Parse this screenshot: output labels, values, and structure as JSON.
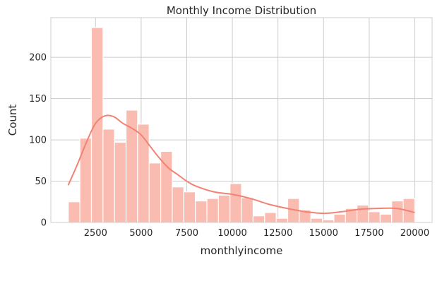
{
  "chart_data": {
    "type": "bar",
    "title": "Monthly Income Distribution",
    "xlabel": "monthlyincome",
    "ylabel": "Count",
    "xlim": [
      50,
      20950
    ],
    "ylim": [
      0,
      248
    ],
    "xticks": [
      2500,
      5000,
      7500,
      10000,
      12500,
      15000,
      17500,
      20000
    ],
    "yticks": [
      0,
      50,
      100,
      150,
      200
    ],
    "grid": true,
    "bins": {
      "start": 1009,
      "width": 633,
      "counts": [
        25,
        102,
        236,
        113,
        97,
        136,
        119,
        72,
        86,
        43,
        37,
        26,
        29,
        33,
        47,
        30,
        8,
        12,
        5,
        29,
        15,
        5,
        3,
        10,
        17,
        21,
        13,
        10,
        26,
        29
      ]
    },
    "kde": {
      "x": [
        1000,
        1500,
        2000,
        2500,
        3000,
        3500,
        4000,
        4500,
        5000,
        5500,
        6000,
        6500,
        7000,
        7500,
        8000,
        9000,
        10000,
        11000,
        12000,
        13000,
        14000,
        15000,
        16000,
        17000,
        18000,
        19000,
        20000
      ],
      "y": [
        45,
        70,
        97,
        120,
        129,
        128,
        120,
        114,
        106,
        92,
        78,
        66,
        58,
        50,
        44,
        37,
        34,
        29,
        22,
        17,
        13,
        11,
        13,
        16,
        17,
        17,
        12
      ]
    },
    "colors": {
      "bar": "#fabbb0",
      "bar_edge": "#ffffff",
      "line": "#f28374",
      "grid": "#cccccc",
      "spine": "#cccccc"
    }
  }
}
